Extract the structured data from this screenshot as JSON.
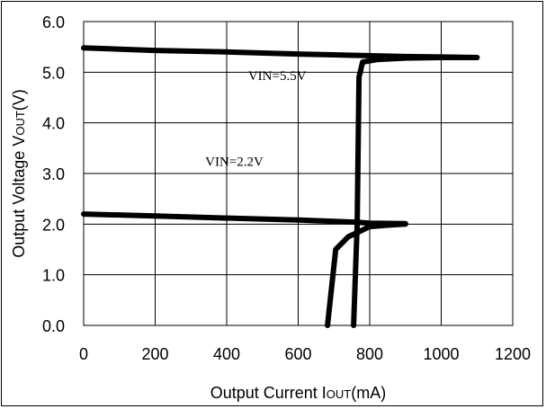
{
  "chart_data": {
    "type": "line",
    "title": "",
    "xlabel": "Output Current I",
    "xlabel_sub": "OUT",
    "xlabel_suffix": "(mA)",
    "ylabel": "Output Voltage V",
    "ylabel_sub": "OUT",
    "ylabel_suffix": "(V)",
    "xlim": [
      0,
      1200
    ],
    "ylim": [
      0,
      6
    ],
    "x_ticks": [
      "0",
      "200",
      "400",
      "600",
      "800",
      "1000",
      "1200"
    ],
    "y_ticks": [
      "0.0",
      "1.0",
      "2.0",
      "3.0",
      "4.0",
      "5.0",
      "6.0"
    ],
    "grid": true,
    "legend": "none",
    "line_color": "#000000",
    "series": [
      {
        "points": [
          [
            0,
            5.48
          ],
          [
            200,
            5.43
          ],
          [
            400,
            5.4
          ],
          [
            600,
            5.36
          ],
          [
            780,
            5.33
          ],
          [
            900,
            5.31
          ],
          [
            1000,
            5.3
          ],
          [
            1100,
            5.29
          ]
        ]
      },
      {
        "points": [
          [
            755,
            0.0
          ],
          [
            765,
            2.0
          ],
          [
            770,
            4.9
          ],
          [
            780,
            5.2
          ],
          [
            820,
            5.25
          ],
          [
            900,
            5.28
          ],
          [
            1000,
            5.29
          ],
          [
            1100,
            5.29
          ]
        ]
      },
      {
        "points": [
          [
            0,
            2.2
          ],
          [
            200,
            2.16
          ],
          [
            400,
            2.12
          ],
          [
            600,
            2.08
          ],
          [
            760,
            2.04
          ],
          [
            800,
            2.02
          ],
          [
            900,
            2.01
          ]
        ]
      },
      {
        "points": [
          [
            682,
            0.0
          ],
          [
            705,
            1.5
          ],
          [
            740,
            1.75
          ],
          [
            770,
            1.85
          ],
          [
            800,
            1.95
          ],
          [
            850,
            1.98
          ],
          [
            900,
            2.0
          ]
        ]
      }
    ],
    "annotations": [
      {
        "text": "VIN=5.5V",
        "x": 460,
        "y": 4.85
      },
      {
        "text": "VIN=2.2V",
        "x": 340,
        "y": 3.15
      }
    ]
  }
}
